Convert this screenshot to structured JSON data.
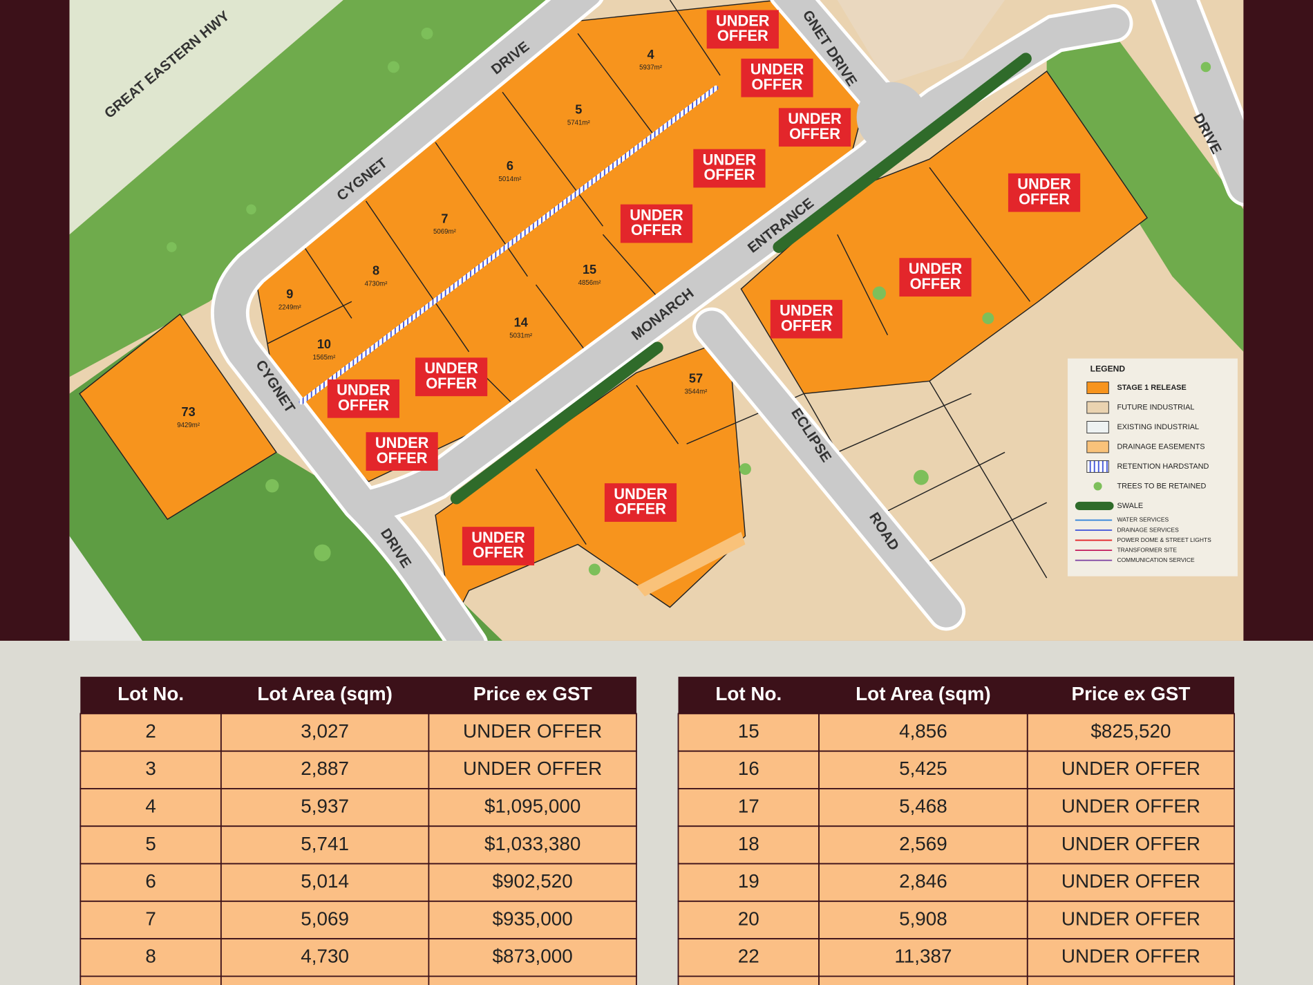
{
  "map": {
    "streets": [
      "GREAT EASTERN HWY",
      "CYGNET",
      "DRIVE",
      "GNET DRIVE",
      "MONARCH",
      "ENTRANCE",
      "ECLIPSE",
      "ROAD",
      "CYGNET",
      "DRIVE",
      "DRIVE"
    ],
    "lots": [
      {
        "number": "4",
        "area": "5937m²"
      },
      {
        "number": "5",
        "area": "5741m²"
      },
      {
        "number": "6",
        "area": "5014m²"
      },
      {
        "number": "7",
        "area": "5069m²"
      },
      {
        "number": "8",
        "area": "4730m²"
      },
      {
        "number": "9",
        "area": "2249m²"
      },
      {
        "number": "10",
        "area": "1565m²"
      },
      {
        "number": "15",
        "area": "4856m²"
      },
      {
        "number": "14",
        "area": "5031m²"
      },
      {
        "number": "57",
        "area": "3544m²"
      },
      {
        "number": "73",
        "area": "9429m²"
      }
    ],
    "badges": [
      [
        "UNDER",
        "OFFER"
      ],
      [
        "UNDER",
        "OFFER"
      ],
      [
        "UNDER",
        "OFFER"
      ],
      [
        "UNDER",
        "OFFER"
      ],
      [
        "UNDER",
        "OFFER"
      ],
      [
        "UNDER",
        "OFFER"
      ],
      [
        "UNDER",
        "OFFER"
      ],
      [
        "UNDER",
        "OFFER"
      ],
      [
        "UNDER",
        "OFFER"
      ],
      [
        "UNDER",
        "OFFER"
      ],
      [
        "UNDER",
        "OFFER"
      ],
      [
        "UNDER",
        "OFFER"
      ],
      [
        "UNDER",
        "OFFER"
      ]
    ],
    "legend": {
      "title": "LEGEND",
      "items": [
        "STAGE 1 RELEASE",
        "FUTURE INDUSTRIAL",
        "EXISTING INDUSTRIAL",
        "DRAINAGE EASEMENTS",
        "RETENTION HARDSTAND",
        "TREES TO BE RETAINED",
        "SWALE",
        "WATER SERVICES",
        "DRAINAGE SERVICES",
        "POWER DOME & STREET LIGHTS",
        "TRANSFORMER SITE",
        "COMMUNICATION SERVICE"
      ]
    }
  },
  "tables": [
    {
      "columns": [
        "Lot No.",
        "Lot Area (sqm)",
        "Price ex GST"
      ],
      "rows": [
        [
          "2",
          "3,027",
          "UNDER OFFER"
        ],
        [
          "3",
          "2,887",
          "UNDER OFFER"
        ],
        [
          "4",
          "5,937",
          "$1,095,000"
        ],
        [
          "5",
          "5,741",
          "$1,033,380"
        ],
        [
          "6",
          "5,014",
          "$902,520"
        ],
        [
          "7",
          "5,069",
          "$935,000"
        ],
        [
          "8",
          "4,730",
          "$873,000"
        ]
      ]
    },
    {
      "columns": [
        "Lot No.",
        "Lot Area (sqm)",
        "Price ex GST"
      ],
      "rows": [
        [
          "15",
          "4,856",
          "$825,520"
        ],
        [
          "16",
          "5,425",
          "UNDER OFFER"
        ],
        [
          "17",
          "5,468",
          "UNDER OFFER"
        ],
        [
          "18",
          "2,569",
          "UNDER OFFER"
        ],
        [
          "19",
          "2,846",
          "UNDER OFFER"
        ],
        [
          "20",
          "5,908",
          "UNDER OFFER"
        ],
        [
          "22",
          "11,387",
          "UNDER OFFER"
        ]
      ]
    }
  ]
}
